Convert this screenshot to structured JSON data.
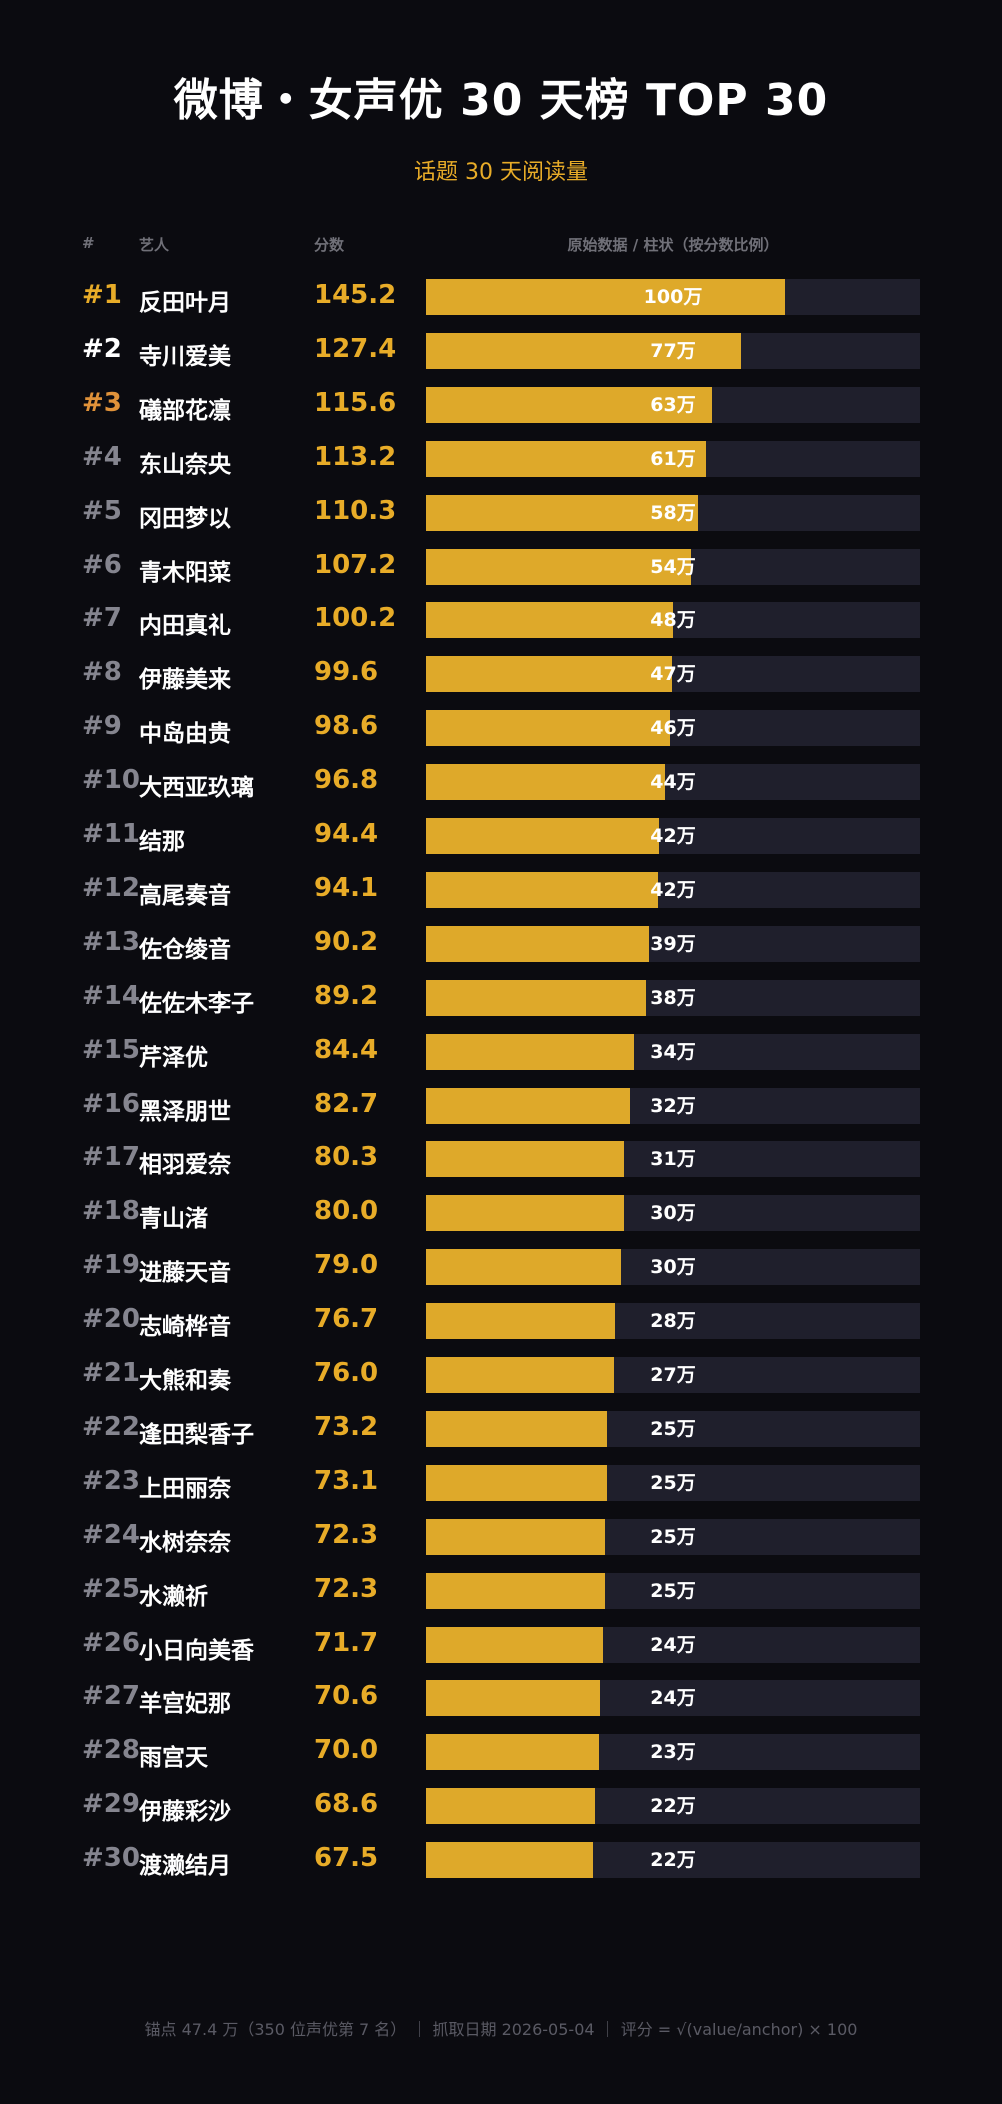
{
  "title": "微博・女声优 30 天榜 TOP 30",
  "subtitle": "话题 30 天阅读量",
  "headers": {
    "rank": "#",
    "artist": "艺人",
    "score": "分数",
    "bar": "原始数据 / 柱状（按分数比例）"
  },
  "footer": "锚点 47.4 万（350 位声优第 7 名） ｜ 抓取日期 2026-05-04 ｜ 评分 = √(value/anchor) × 100",
  "colors": {
    "background": "#0b0b10",
    "accent": "#e8ac28",
    "bar_fill": "#dea92a",
    "bar_track": "#1f1f2c",
    "rank_1": "#e8ac28",
    "rank_2": "#ffffff",
    "rank_3": "#e0923a",
    "rank_other": "#85858f"
  },
  "chart_data": {
    "type": "bar",
    "title": "微博・女声优 30 天榜 TOP 30",
    "subtitle": "话题 30 天阅读量",
    "xlim": [
      0,
      200
    ],
    "rows": [
      {
        "rank": "#1",
        "name": "反田叶月",
        "score": "145.2",
        "score_value": 145.2,
        "raw": "100万"
      },
      {
        "rank": "#2",
        "name": "寺川爱美",
        "score": "127.4",
        "score_value": 127.4,
        "raw": "77万"
      },
      {
        "rank": "#3",
        "name": "礒部花凛",
        "score": "115.6",
        "score_value": 115.6,
        "raw": "63万"
      },
      {
        "rank": "#4",
        "name": "东山奈央",
        "score": "113.2",
        "score_value": 113.2,
        "raw": "61万"
      },
      {
        "rank": "#5",
        "name": "冈田梦以",
        "score": "110.3",
        "score_value": 110.3,
        "raw": "58万"
      },
      {
        "rank": "#6",
        "name": "青木阳菜",
        "score": "107.2",
        "score_value": 107.2,
        "raw": "54万"
      },
      {
        "rank": "#7",
        "name": "内田真礼",
        "score": "100.2",
        "score_value": 100.2,
        "raw": "48万"
      },
      {
        "rank": "#8",
        "name": "伊藤美来",
        "score": "99.6",
        "score_value": 99.6,
        "raw": "47万"
      },
      {
        "rank": "#9",
        "name": "中岛由贵",
        "score": "98.6",
        "score_value": 98.6,
        "raw": "46万"
      },
      {
        "rank": "#10",
        "name": "大西亚玖璃",
        "score": "96.8",
        "score_value": 96.8,
        "raw": "44万"
      },
      {
        "rank": "#11",
        "name": "结那",
        "score": "94.4",
        "score_value": 94.4,
        "raw": "42万"
      },
      {
        "rank": "#12",
        "name": "高尾奏音",
        "score": "94.1",
        "score_value": 94.1,
        "raw": "42万"
      },
      {
        "rank": "#13",
        "name": "佐仓绫音",
        "score": "90.2",
        "score_value": 90.2,
        "raw": "39万"
      },
      {
        "rank": "#14",
        "name": "佐佐木李子",
        "score": "89.2",
        "score_value": 89.2,
        "raw": "38万"
      },
      {
        "rank": "#15",
        "name": "芹泽优",
        "score": "84.4",
        "score_value": 84.4,
        "raw": "34万"
      },
      {
        "rank": "#16",
        "name": "黑泽朋世",
        "score": "82.7",
        "score_value": 82.7,
        "raw": "32万"
      },
      {
        "rank": "#17",
        "name": "相羽爱奈",
        "score": "80.3",
        "score_value": 80.3,
        "raw": "31万"
      },
      {
        "rank": "#18",
        "name": "青山渚",
        "score": "80.0",
        "score_value": 80.0,
        "raw": "30万"
      },
      {
        "rank": "#19",
        "name": "进藤天音",
        "score": "79.0",
        "score_value": 79.0,
        "raw": "30万"
      },
      {
        "rank": "#20",
        "name": "志崎桦音",
        "score": "76.7",
        "score_value": 76.7,
        "raw": "28万"
      },
      {
        "rank": "#21",
        "name": "大熊和奏",
        "score": "76.0",
        "score_value": 76.0,
        "raw": "27万"
      },
      {
        "rank": "#22",
        "name": "逢田梨香子",
        "score": "73.2",
        "score_value": 73.2,
        "raw": "25万"
      },
      {
        "rank": "#23",
        "name": "上田丽奈",
        "score": "73.1",
        "score_value": 73.1,
        "raw": "25万"
      },
      {
        "rank": "#24",
        "name": "水树奈奈",
        "score": "72.3",
        "score_value": 72.3,
        "raw": "25万"
      },
      {
        "rank": "#25",
        "name": "水濑祈",
        "score": "72.3",
        "score_value": 72.3,
        "raw": "25万"
      },
      {
        "rank": "#26",
        "name": "小日向美香",
        "score": "71.7",
        "score_value": 71.7,
        "raw": "24万"
      },
      {
        "rank": "#27",
        "name": "羊宫妃那",
        "score": "70.6",
        "score_value": 70.6,
        "raw": "24万"
      },
      {
        "rank": "#28",
        "name": "雨宫天",
        "score": "70.0",
        "score_value": 70.0,
        "raw": "23万"
      },
      {
        "rank": "#29",
        "name": "伊藤彩沙",
        "score": "68.6",
        "score_value": 68.6,
        "raw": "22万"
      },
      {
        "rank": "#30",
        "name": "渡濑结月",
        "score": "67.5",
        "score_value": 67.5,
        "raw": "22万"
      }
    ]
  }
}
